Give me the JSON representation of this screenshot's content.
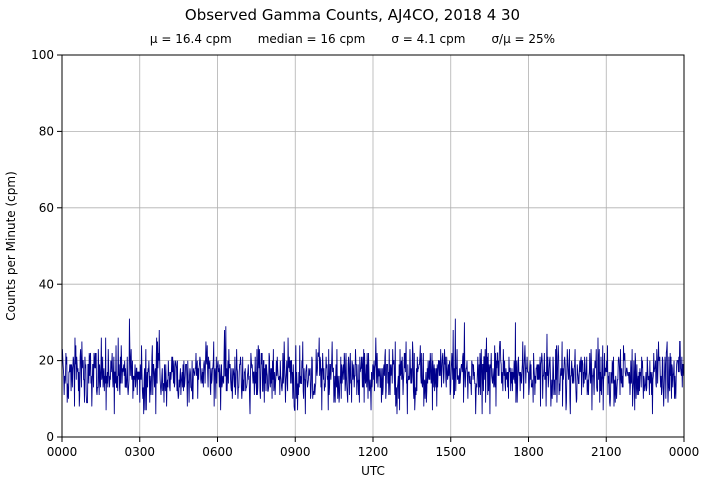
{
  "figure": {
    "title": "Observed Gamma Counts, AJ4CO, 2018 4 30",
    "subtitle_parts": [
      "μ = 16.4 cpm",
      "median = 16 cpm",
      "σ = 4.1 cpm",
      "σ/μ = 25%"
    ]
  },
  "chart_data": {
    "type": "line",
    "title": "Observed Gamma Counts, AJ4CO, 2018 4 30",
    "stats": {
      "mean_cpm": 16.4,
      "median_cpm": 16,
      "sigma_cpm": 4.1,
      "sigma_over_mu_percent": 25
    },
    "xlabel": "UTC",
    "ylabel": "Counts per Minute (cpm)",
    "x_range_minutes": [
      0,
      1440
    ],
    "xtick_labels": [
      "0000",
      "0300",
      "0600",
      "0900",
      "1200",
      "1500",
      "1800",
      "2100",
      "0000"
    ],
    "ylim": [
      0,
      100
    ],
    "ytick_values": [
      0,
      20,
      40,
      60,
      80,
      100
    ],
    "grid": true,
    "legend": "none",
    "series": [
      {
        "name": "observed gamma counts",
        "n_points": 1440,
        "mean": 16.4,
        "median": 16,
        "sigma": 4.1,
        "min_observed": 7,
        "max_observed": 31,
        "color": "#00008B"
      }
    ],
    "grid_color": "#b0b0b0",
    "axis_color": "#000000"
  }
}
